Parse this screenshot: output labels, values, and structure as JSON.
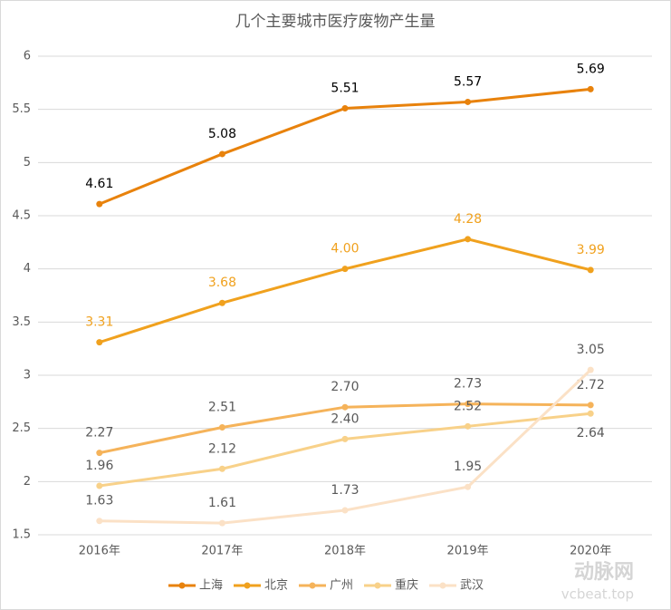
{
  "chart_data": {
    "type": "line",
    "title": "几个主要城市医疗废物产生量",
    "categories": [
      "2016年",
      "2017年",
      "2018年",
      "2019年",
      "2020年"
    ],
    "series": [
      {
        "name": "上海",
        "color": "#e8820c",
        "label_color": "#000000",
        "values": [
          4.61,
          5.08,
          5.51,
          5.57,
          5.69
        ]
      },
      {
        "name": "北京",
        "color": "#f0a11e",
        "label_color": "#f0a11e",
        "values": [
          3.31,
          3.68,
          4.0,
          4.28,
          3.99
        ],
        "value_labels": [
          "3.31",
          "3.68",
          "4.00",
          "4.28",
          "3.99"
        ]
      },
      {
        "name": "广州",
        "color": "#f5b35a",
        "label_color": "#595959",
        "values": [
          2.27,
          2.51,
          2.7,
          2.73,
          2.72
        ],
        "value_labels": [
          "2.27",
          "2.51",
          "2.70",
          "2.73",
          "2.72"
        ]
      },
      {
        "name": "重庆",
        "color": "#f8d189",
        "label_color": "#595959",
        "values": [
          1.96,
          2.12,
          2.4,
          2.52,
          2.64
        ],
        "value_labels": [
          "1.96",
          "2.12",
          "2.40",
          "2.52",
          "2.64"
        ]
      },
      {
        "name": "武汉",
        "color": "#fbe1c6",
        "label_color": "#595959",
        "values": [
          1.63,
          1.61,
          1.73,
          1.95,
          3.05
        ]
      }
    ],
    "ylim": [
      1.5,
      6
    ],
    "yticks": [
      1.5,
      2,
      2.5,
      3,
      3.5,
      4,
      4.5,
      5,
      5.5,
      6
    ],
    "grid": true,
    "legend": "bottom",
    "watermark": [
      "动脉网",
      "vcbeat.top"
    ]
  }
}
